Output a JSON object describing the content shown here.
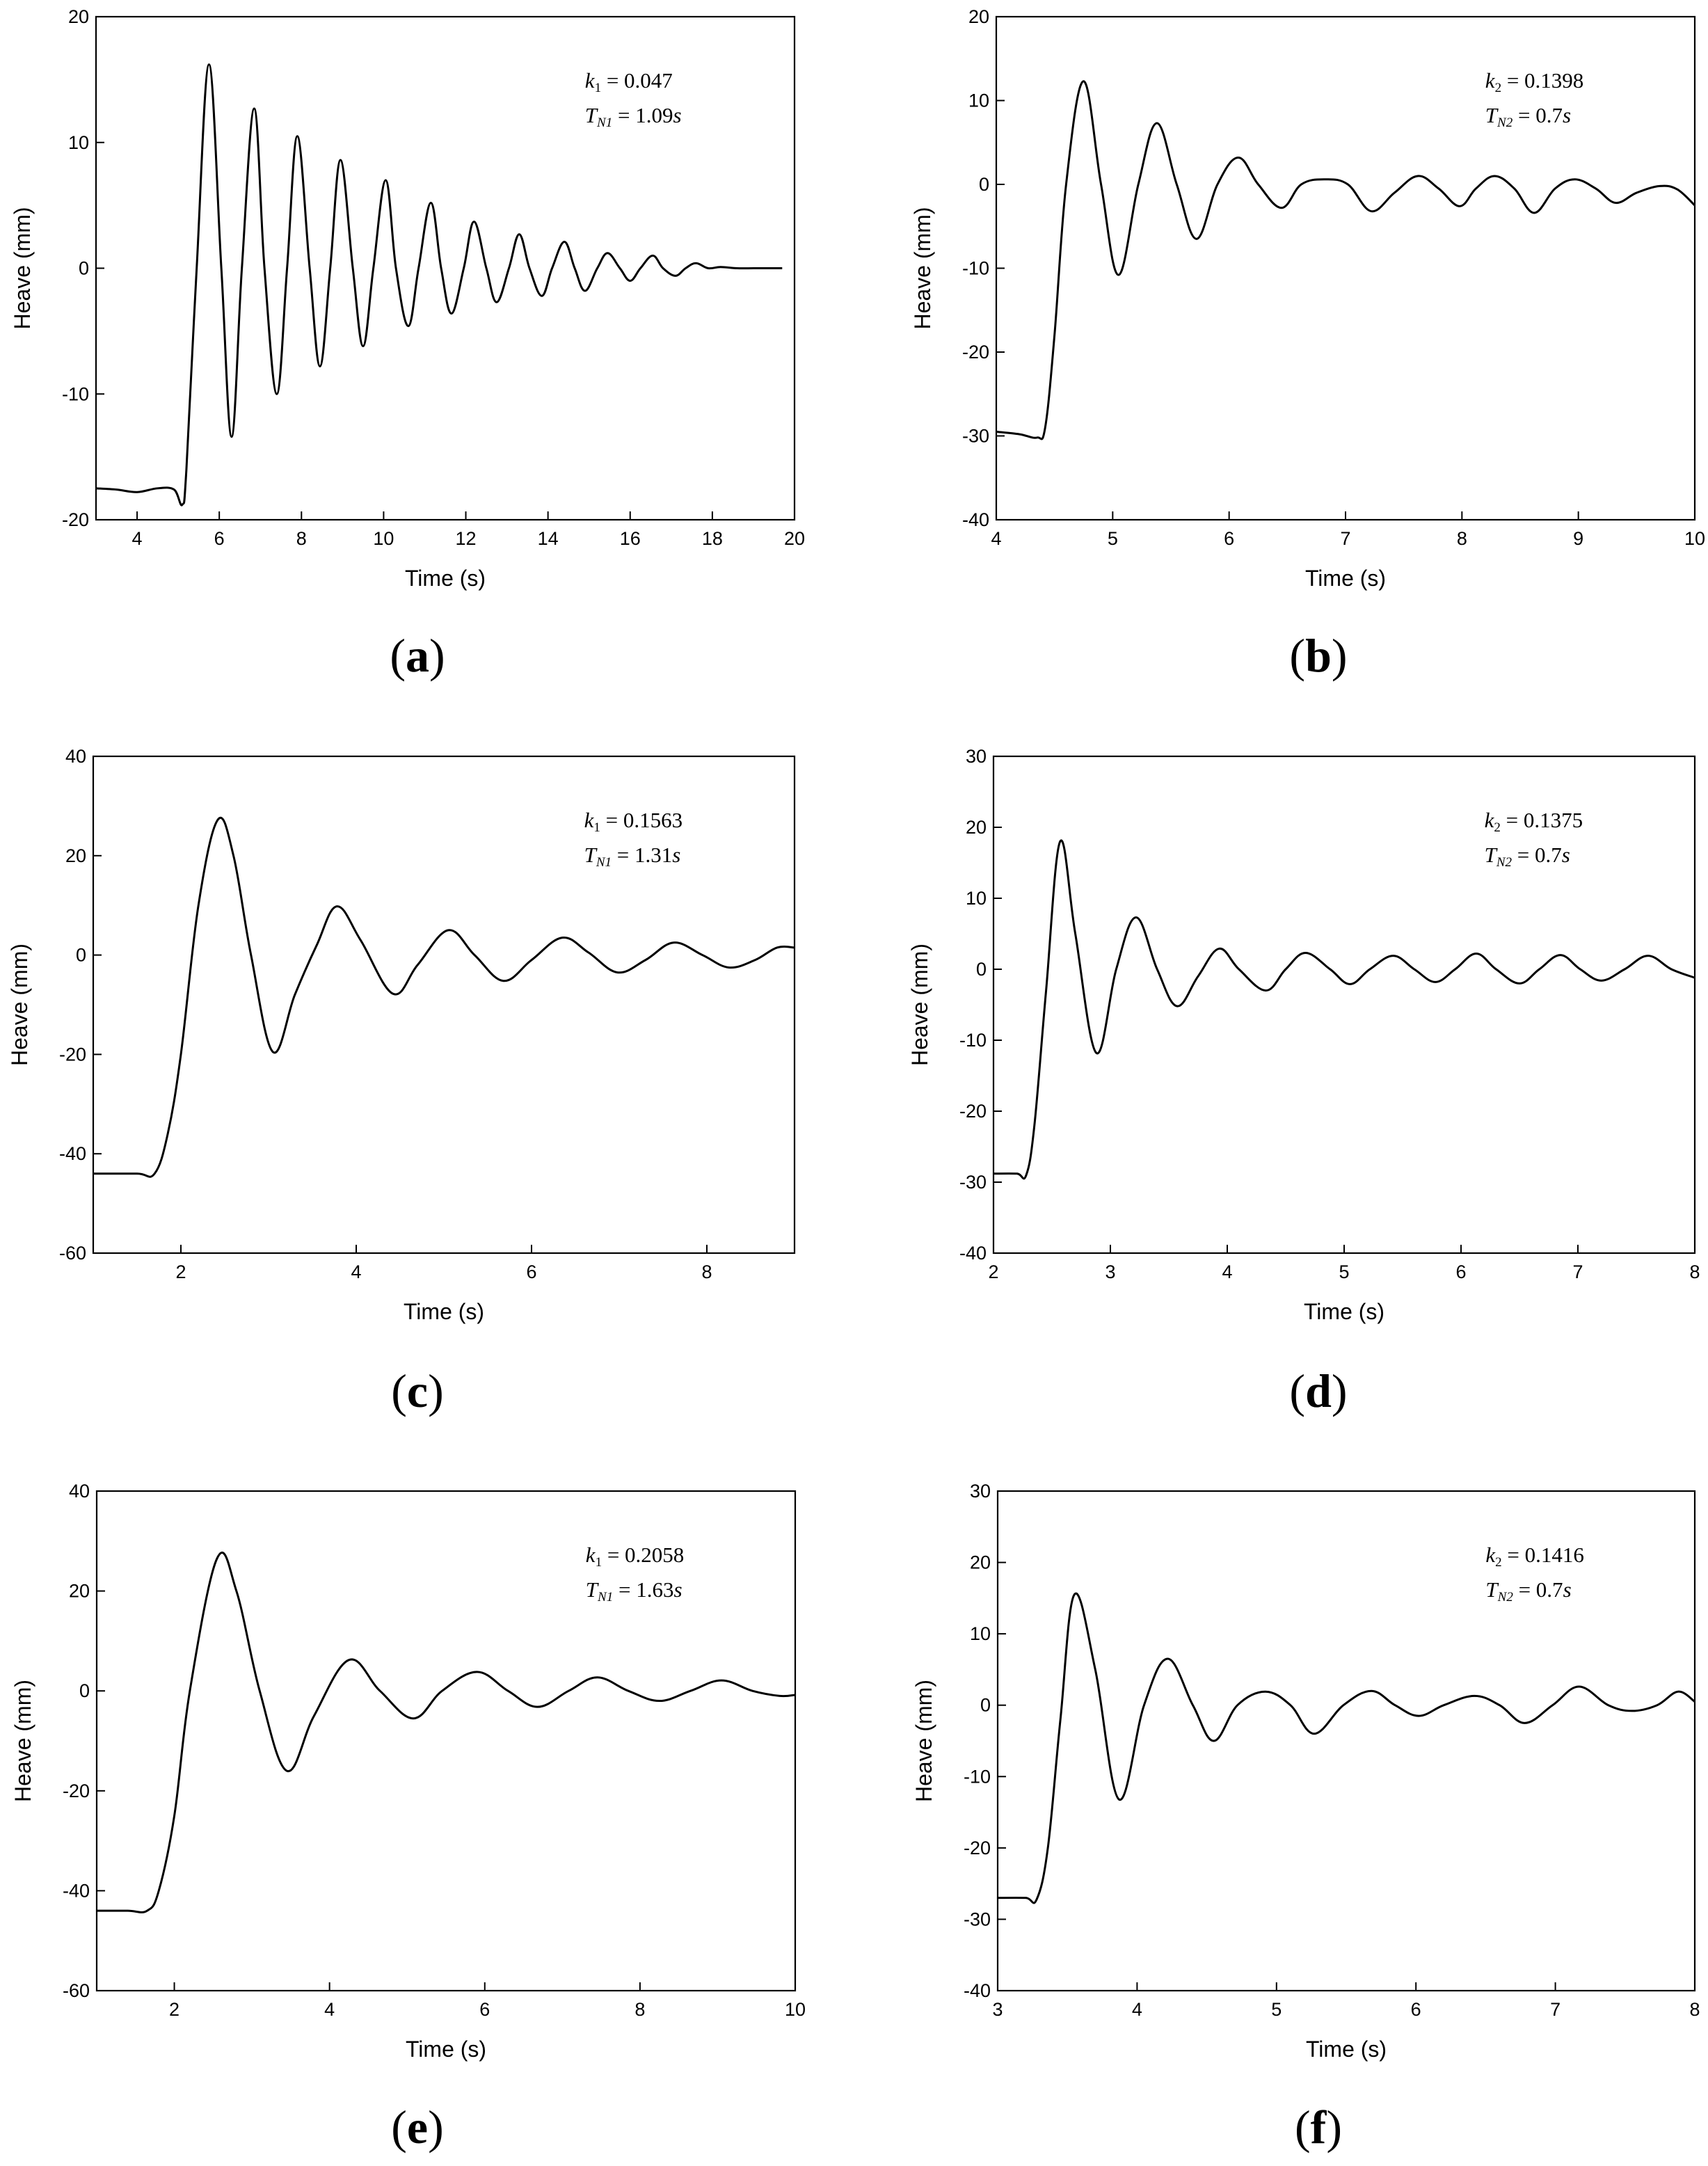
{
  "chart_data": [
    {
      "id": "a",
      "type": "line",
      "panel_label": "a",
      "xlabel": "Time (s)",
      "ylabel": "Heave (mm)",
      "xlim": [
        3,
        20
      ],
      "ylim": [
        -20,
        20
      ],
      "xticks": [
        4,
        6,
        8,
        10,
        12,
        14,
        16,
        18,
        20
      ],
      "yticks": [
        -20,
        -10,
        0,
        10,
        20
      ],
      "annotation": {
        "k_sym": "k",
        "k_sub": "1",
        "k_val": "0.047",
        "t_sym": "T",
        "t_sub": "N1",
        "t_val": "1.09",
        "t_unit": "s"
      },
      "series": [
        {
          "name": "heave",
          "x": [
            3.0,
            3.5,
            4.0,
            4.5,
            4.9,
            5.1,
            5.2,
            5.45,
            5.75,
            6.05,
            6.3,
            6.55,
            6.85,
            7.1,
            7.4,
            7.65,
            7.9,
            8.2,
            8.45,
            8.7,
            8.95,
            9.25,
            9.5,
            9.75,
            10.05,
            10.3,
            10.6,
            10.85,
            11.15,
            11.4,
            11.65,
            11.95,
            12.2,
            12.5,
            12.75,
            13.05,
            13.3,
            13.55,
            13.85,
            14.1,
            14.4,
            14.65,
            14.9,
            15.2,
            15.45,
            15.75,
            16.0,
            16.25,
            16.55,
            16.8,
            17.1,
            17.35,
            17.6,
            17.9,
            18.2,
            18.6,
            19.0,
            19.3,
            19.7
          ],
          "y": [
            -17.5,
            -17.6,
            -17.8,
            -17.5,
            -17.6,
            -18.8,
            -16.0,
            0.0,
            16.2,
            0.0,
            -13.4,
            0.0,
            12.7,
            0.0,
            -10.0,
            0.0,
            10.5,
            0.0,
            -7.8,
            0.0,
            8.6,
            0.0,
            -6.2,
            0.0,
            7.0,
            0.0,
            -4.6,
            0.0,
            5.2,
            0.0,
            -3.6,
            0.0,
            3.7,
            0.0,
            -2.7,
            0.0,
            2.7,
            0.0,
            -2.2,
            0.0,
            2.1,
            0.0,
            -1.8,
            0.0,
            1.2,
            0.0,
            -1.0,
            0.0,
            1.0,
            0.0,
            -0.6,
            0.0,
            0.4,
            0.0,
            0.1,
            0.0,
            0.0,
            0.0,
            0.0
          ]
        }
      ]
    },
    {
      "id": "b",
      "type": "line",
      "panel_label": "b",
      "xlabel": "Time (s)",
      "ylabel": "Heave (mm)",
      "xlim": [
        4,
        10
      ],
      "ylim": [
        -40,
        20
      ],
      "xticks": [
        4,
        5,
        6,
        7,
        8,
        9,
        10
      ],
      "yticks": [
        -40,
        -30,
        -20,
        -10,
        0,
        10,
        20
      ],
      "annotation": {
        "k_sym": "k",
        "k_sub": "2",
        "k_val": "0.1398",
        "t_sym": "T",
        "t_sub": "N2",
        "t_val": "0.7",
        "t_unit": "s"
      },
      "series": [
        {
          "name": "heave",
          "x": [
            4.0,
            4.2,
            4.35,
            4.42,
            4.5,
            4.6,
            4.75,
            4.9,
            5.05,
            5.22,
            5.38,
            5.55,
            5.72,
            5.9,
            6.08,
            6.25,
            6.45,
            6.62,
            6.82,
            7.02,
            7.22,
            7.42,
            7.62,
            7.8,
            7.98,
            8.12,
            8.28,
            8.45,
            8.62,
            8.8,
            8.97,
            9.15,
            9.32,
            9.5,
            9.7,
            9.85,
            10.0
          ],
          "y": [
            -29.5,
            -29.8,
            -30.2,
            -29.0,
            -18.0,
            0.0,
            12.3,
            0.0,
            -10.8,
            0.0,
            7.3,
            0.0,
            -6.5,
            0.0,
            3.2,
            0.0,
            -2.8,
            0.0,
            0.6,
            0.0,
            -3.2,
            -1.0,
            1.0,
            -0.5,
            -2.6,
            -0.5,
            1.0,
            -0.5,
            -3.4,
            -0.5,
            0.6,
            -0.5,
            -2.2,
            -1.0,
            -0.2,
            -0.6,
            -2.5
          ]
        }
      ]
    },
    {
      "id": "c",
      "type": "line",
      "panel_label": "c",
      "xlabel": "Time (s)",
      "ylabel": "Heave (mm)",
      "xlim": [
        1,
        9
      ],
      "ylim": [
        -60,
        40
      ],
      "xticks": [
        2,
        4,
        6,
        8
      ],
      "yticks": [
        -60,
        -40,
        -20,
        0,
        20,
        40
      ],
      "annotation": {
        "k_sym": "k",
        "k_sub": "1",
        "k_val": "0.1563",
        "t_sym": "T",
        "t_sub": "N1",
        "t_val": "1.31",
        "t_unit": "s"
      },
      "series": [
        {
          "name": "heave",
          "x": [
            1.0,
            1.5,
            1.7,
            1.85,
            2.0,
            2.2,
            2.42,
            2.6,
            2.8,
            3.05,
            3.3,
            3.55,
            3.78,
            4.05,
            4.42,
            4.7,
            5.05,
            5.35,
            5.68,
            6.0,
            6.35,
            6.65,
            6.98,
            7.3,
            7.62,
            7.95,
            8.25,
            8.55,
            8.8,
            9.0
          ],
          "y": [
            -44.0,
            -44.0,
            -44.0,
            -36.0,
            -20.0,
            10.0,
            27.2,
            20.0,
            0.0,
            -19.5,
            -8.0,
            2.0,
            9.8,
            3.0,
            -7.8,
            -2.0,
            5.0,
            0.0,
            -5.2,
            -1.0,
            3.5,
            0.5,
            -3.5,
            -1.0,
            2.5,
            0.0,
            -2.5,
            -1.0,
            1.5,
            1.5
          ]
        }
      ]
    },
    {
      "id": "d",
      "type": "line",
      "panel_label": "d",
      "xlabel": "Time (s)",
      "ylabel": "Heave (mm)",
      "xlim": [
        2,
        8
      ],
      "ylim": [
        -40,
        30
      ],
      "xticks": [
        2,
        3,
        4,
        5,
        6,
        7,
        8
      ],
      "yticks": [
        -40,
        -30,
        -20,
        -10,
        0,
        10,
        20,
        30
      ],
      "annotation": {
        "k_sym": "k",
        "k_sub": "2",
        "k_val": "0.1375",
        "t_sym": "T",
        "t_sub": "N2",
        "t_val": "0.7",
        "t_unit": "s"
      },
      "series": [
        {
          "name": "heave",
          "x": [
            2.0,
            2.2,
            2.28,
            2.35,
            2.45,
            2.57,
            2.7,
            2.88,
            3.05,
            3.22,
            3.4,
            3.57,
            3.75,
            3.93,
            4.1,
            4.33,
            4.5,
            4.67,
            4.88,
            5.05,
            5.22,
            5.42,
            5.6,
            5.78,
            5.95,
            6.13,
            6.3,
            6.5,
            6.67,
            6.85,
            7.02,
            7.2,
            7.4,
            7.6,
            7.8,
            8.0
          ],
          "y": [
            -28.8,
            -28.8,
            -29.0,
            -22.0,
            -3.0,
            18.0,
            5.0,
            -11.8,
            0.0,
            7.3,
            0.0,
            -5.2,
            -1.0,
            2.9,
            0.0,
            -3.0,
            0.0,
            2.3,
            0.0,
            -2.1,
            0.0,
            1.9,
            0.0,
            -1.8,
            0.0,
            2.2,
            0.0,
            -2.0,
            0.0,
            2.0,
            0.0,
            -1.6,
            0.0,
            1.9,
            0.0,
            -1.2
          ]
        }
      ]
    },
    {
      "id": "e",
      "type": "line",
      "panel_label": "e",
      "xlabel": "Time (s)",
      "ylabel": "Heave (mm)",
      "xlim": [
        1,
        10
      ],
      "ylim": [
        -60,
        40
      ],
      "xticks": [
        2,
        4,
        6,
        8,
        10
      ],
      "yticks": [
        -60,
        -40,
        -20,
        0,
        20,
        40
      ],
      "annotation": {
        "k_sym": "k",
        "k_sub": "1",
        "k_val": "0.2058",
        "t_sym": "T",
        "t_sub": "N1",
        "t_val": "1.63",
        "t_unit": "s"
      },
      "series": [
        {
          "name": "heave",
          "x": [
            1.0,
            1.4,
            1.65,
            1.8,
            2.0,
            2.2,
            2.55,
            2.8,
            3.1,
            3.45,
            3.8,
            4.25,
            4.65,
            5.08,
            5.45,
            5.9,
            6.3,
            6.68,
            7.08,
            7.45,
            7.85,
            8.25,
            8.65,
            9.05,
            9.45,
            9.8,
            10.0
          ],
          "y": [
            -44.0,
            -44.0,
            -44.0,
            -40.0,
            -25.0,
            0.0,
            26.5,
            20.0,
            0.0,
            -16.0,
            -5.0,
            6.2,
            0.0,
            -5.5,
            0.0,
            3.8,
            0.0,
            -3.2,
            0.0,
            2.7,
            0.0,
            -2.0,
            0.0,
            2.1,
            0.0,
            -1.0,
            -0.8
          ]
        }
      ]
    },
    {
      "id": "f",
      "type": "line",
      "panel_label": "f",
      "xlabel": "Time (s)",
      "ylabel": "Heave (mm)",
      "xlim": [
        3,
        8
      ],
      "ylim": [
        -40,
        30
      ],
      "xticks": [
        3,
        4,
        5,
        6,
        7,
        8
      ],
      "yticks": [
        -40,
        -30,
        -20,
        -10,
        0,
        10,
        20,
        30
      ],
      "annotation": {
        "k_sym": "k",
        "k_sub": "2",
        "k_val": "0.1416",
        "t_sym": "T",
        "t_sub": "N2",
        "t_val": "0.7",
        "t_unit": "s"
      },
      "series": [
        {
          "name": "heave",
          "x": [
            3.0,
            3.2,
            3.28,
            3.36,
            3.45,
            3.55,
            3.7,
            3.87,
            4.05,
            4.22,
            4.4,
            4.55,
            4.72,
            4.92,
            5.1,
            5.27,
            5.48,
            5.68,
            5.85,
            6.02,
            6.2,
            6.42,
            6.6,
            6.78,
            6.98,
            7.17,
            7.38,
            7.55,
            7.73,
            7.88,
            8.0
          ],
          "y": [
            -27.0,
            -27.0,
            -27.2,
            -20.0,
            -2.0,
            15.5,
            5.0,
            -13.2,
            0.0,
            6.5,
            0.0,
            -5.0,
            0.0,
            1.9,
            0.0,
            -4.0,
            0.0,
            2.0,
            0.0,
            -1.5,
            0.0,
            1.3,
            0.0,
            -2.5,
            0.0,
            2.6,
            0.0,
            -0.8,
            0.0,
            1.9,
            0.5
          ]
        }
      ]
    }
  ]
}
